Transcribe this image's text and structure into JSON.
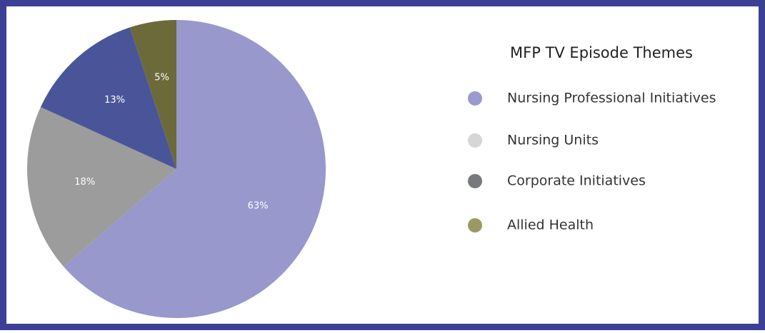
{
  "chart_data": {
    "type": "pie",
    "title": "MFP TV Episode Themes",
    "categories": [
      "Nursing Professional Initiatives",
      "Nursing Units",
      "Corporate Initiatives",
      "Allied Health"
    ],
    "values": [
      63,
      18,
      13,
      5
    ],
    "value_labels": [
      "63%",
      "18%",
      "13%",
      "5%"
    ],
    "colors": [
      "#9898cc",
      "#9c9c9c",
      "#4a5599",
      "#6c6a38"
    ],
    "legend_colors": [
      "#9a9acf",
      "#d6d6d6",
      "#78797c",
      "#9a9966"
    ]
  }
}
